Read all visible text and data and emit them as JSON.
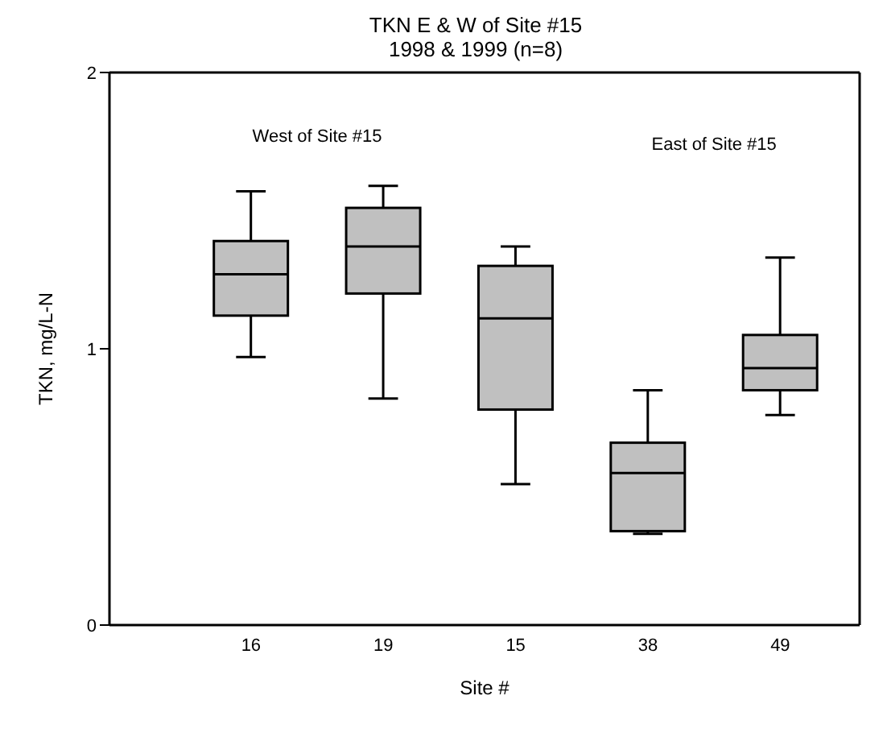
{
  "chart_data": {
    "type": "box",
    "title": "TKN  E & W of Site #15",
    "subtitle": "1998 & 1999 (n=8)",
    "xlabel": "Site #",
    "ylabel": "TKN, mg/L-N",
    "categories": [
      "16",
      "19",
      "15",
      "38",
      "49"
    ],
    "color": "#c0c0c0",
    "boxes": [
      {
        "low": 0.97,
        "q1": 1.12,
        "median": 1.27,
        "q3": 1.39,
        "high": 1.57
      },
      {
        "low": 0.82,
        "q1": 1.2,
        "median": 1.37,
        "q3": 1.51,
        "high": 1.59
      },
      {
        "low": 0.51,
        "q1": 0.78,
        "median": 1.11,
        "q3": 1.3,
        "high": 1.37
      },
      {
        "low": 0.33,
        "q1": 0.34,
        "median": 0.55,
        "q3": 0.66,
        "high": 0.85
      },
      {
        "low": 0.76,
        "q1": 0.85,
        "median": 0.93,
        "q3": 1.05,
        "high": 1.33
      }
    ],
    "ylim": [
      0,
      2
    ],
    "yticks": [
      0,
      1,
      2
    ],
    "annotations": [
      "West of Site #15",
      "East of Site #15"
    ]
  }
}
